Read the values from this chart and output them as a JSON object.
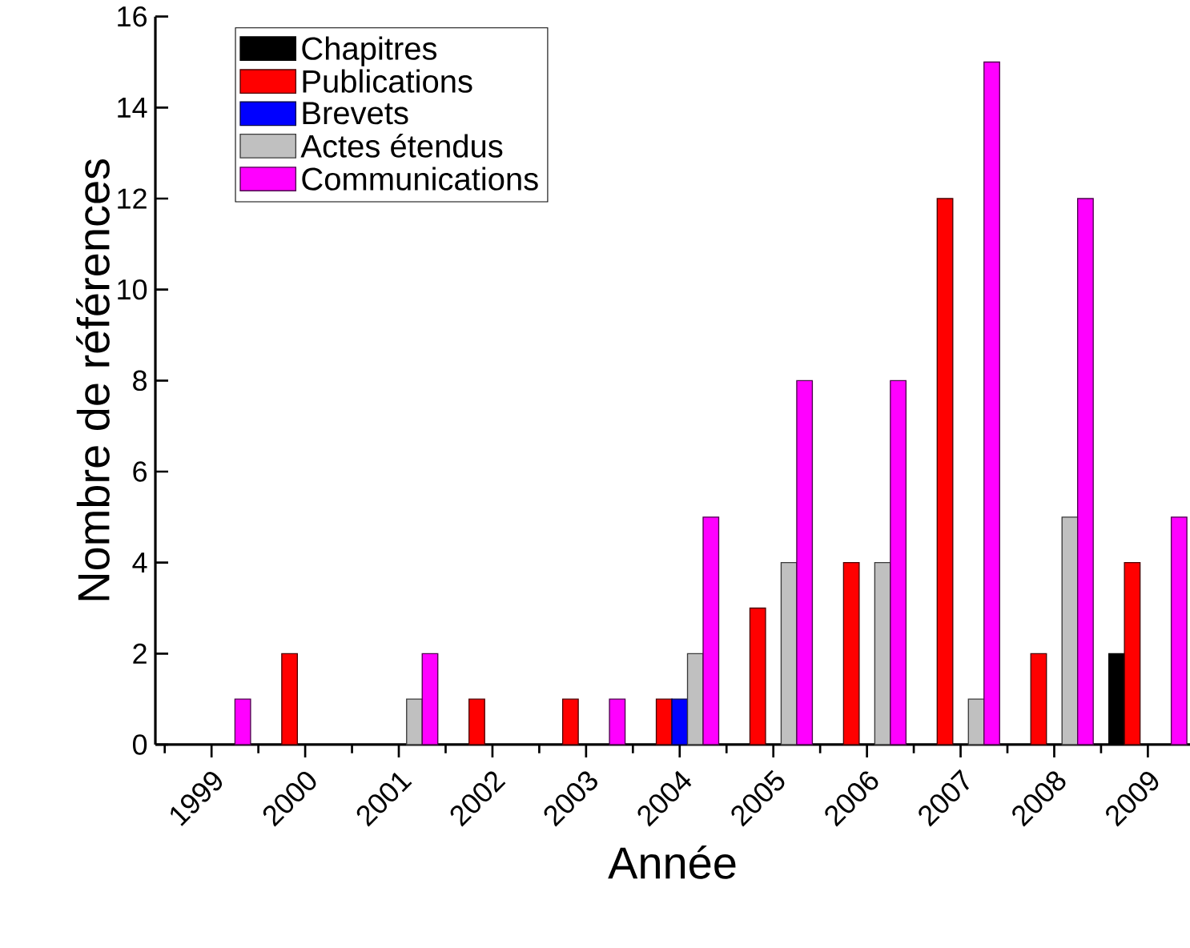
{
  "chart_data": {
    "type": "bar",
    "xlabel": "Année",
    "ylabel": "Nombre de références",
    "categories": [
      "1999",
      "2000",
      "2001",
      "2002",
      "2003",
      "2004",
      "2005",
      "2006",
      "2007",
      "2008",
      "2009"
    ],
    "series": [
      {
        "name": "Chapitres",
        "color": "#000000",
        "values": [
          null,
          null,
          null,
          null,
          null,
          null,
          null,
          null,
          null,
          null,
          2
        ]
      },
      {
        "name": "Publications",
        "color": "#ff0000",
        "values": [
          null,
          2,
          null,
          1,
          1,
          1,
          3,
          4,
          12,
          2,
          4
        ]
      },
      {
        "name": "Brevets",
        "color": "#0000ff",
        "values": [
          null,
          null,
          null,
          null,
          null,
          1,
          null,
          null,
          null,
          null,
          null
        ]
      },
      {
        "name": "Actes étendus",
        "color": "#c0c0c0",
        "values": [
          null,
          null,
          1,
          null,
          null,
          2,
          4,
          4,
          1,
          5,
          null
        ]
      },
      {
        "name": "Communications",
        "color": "#ff00ff",
        "values": [
          1,
          null,
          2,
          null,
          1,
          5,
          8,
          8,
          15,
          12,
          5
        ]
      }
    ],
    "ylim": [
      0,
      16
    ],
    "yticks": [
      0,
      2,
      4,
      6,
      8,
      10,
      12,
      14,
      16
    ],
    "legend": "top left"
  }
}
